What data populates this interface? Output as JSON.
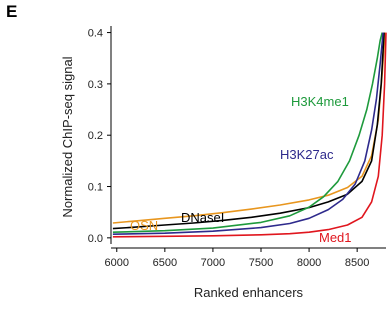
{
  "panel_label": "E",
  "chart_data": {
    "type": "line",
    "xlabel": "Ranked enhancers",
    "ylabel": "Normalized ChIP-seq signal",
    "xlim": [
      5940,
      8800
    ],
    "ylim": [
      -0.012,
      0.405
    ],
    "xticks": [
      6000,
      6500,
      7000,
      7500,
      8000,
      8500
    ],
    "yticks": [
      0.0,
      0.1,
      0.2,
      0.3,
      0.4
    ],
    "ytick_labels": [
      "0.0",
      "0.1",
      "0.2",
      "0.3",
      "0.4"
    ],
    "grid": false,
    "series": [
      {
        "name": "OSN",
        "color": "#e8961e",
        "x": [
          5960,
          6200,
          6500,
          6800,
          7100,
          7400,
          7700,
          8000,
          8200,
          8400,
          8550,
          8650,
          8720,
          8760,
          8790
        ],
        "y": [
          0.029,
          0.033,
          0.038,
          0.043,
          0.049,
          0.056,
          0.064,
          0.074,
          0.083,
          0.098,
          0.12,
          0.16,
          0.23,
          0.32,
          0.4
        ]
      },
      {
        "name": "DNaseI",
        "color": "#000000",
        "x": [
          5960,
          6200,
          6500,
          6800,
          7100,
          7400,
          7700,
          8000,
          8200,
          8400,
          8550,
          8650,
          8710,
          8750,
          8780
        ],
        "y": [
          0.018,
          0.021,
          0.025,
          0.029,
          0.034,
          0.04,
          0.048,
          0.059,
          0.07,
          0.085,
          0.11,
          0.15,
          0.22,
          0.3,
          0.4
        ]
      },
      {
        "name": "H3K4me1",
        "color": "#1e9a3c",
        "x": [
          5960,
          6500,
          7000,
          7500,
          7800,
          8000,
          8150,
          8300,
          8420,
          8520,
          8600,
          8660,
          8710,
          8740,
          8760
        ],
        "y": [
          0.011,
          0.014,
          0.019,
          0.03,
          0.043,
          0.06,
          0.08,
          0.11,
          0.15,
          0.2,
          0.25,
          0.3,
          0.35,
          0.385,
          0.4
        ]
      },
      {
        "name": "H3K27ac",
        "color": "#2e2a8c",
        "x": [
          5960,
          6500,
          7000,
          7500,
          7800,
          8000,
          8200,
          8350,
          8480,
          8580,
          8650,
          8700,
          8740,
          8770
        ],
        "y": [
          0.007,
          0.009,
          0.013,
          0.02,
          0.028,
          0.038,
          0.055,
          0.075,
          0.105,
          0.15,
          0.21,
          0.27,
          0.34,
          0.4
        ]
      },
      {
        "name": "Med1",
        "color": "#e0161e",
        "x": [
          5960,
          6500,
          7000,
          7500,
          7800,
          8000,
          8200,
          8400,
          8550,
          8650,
          8720,
          8760,
          8785,
          8800
        ],
        "y": [
          0.002,
          0.003,
          0.004,
          0.006,
          0.008,
          0.011,
          0.016,
          0.025,
          0.04,
          0.07,
          0.12,
          0.2,
          0.3,
          0.4
        ]
      }
    ]
  }
}
